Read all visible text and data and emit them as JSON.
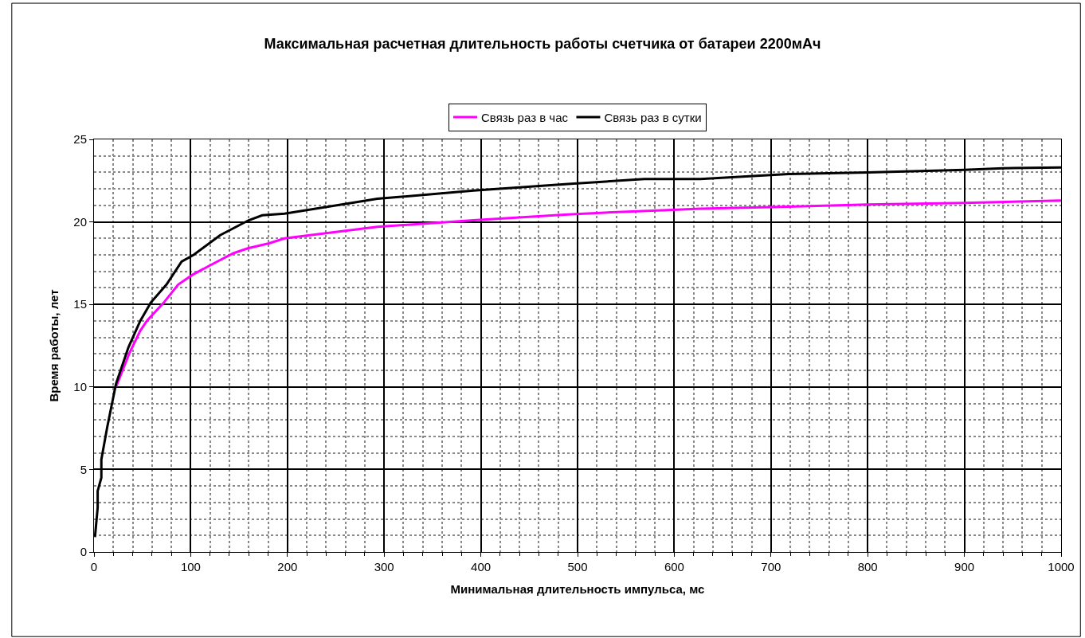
{
  "chart_data": {
    "type": "line",
    "title": "Максимальная расчетная длительность работы счетчика от батареи 2200мАч",
    "xlabel": "Минимальная длительность импульса, мс",
    "ylabel": "Время работы, лет",
    "xlim": [
      0,
      1000
    ],
    "xticks": [
      0,
      100,
      200,
      300,
      400,
      500,
      600,
      700,
      800,
      900,
      1000
    ],
    "ylim": [
      0,
      25
    ],
    "yticks": [
      0,
      5,
      10,
      15,
      20,
      25
    ],
    "grid": true,
    "legend": "top",
    "marker": "none",
    "line_style": "solid",
    "series": [
      {
        "name": "Связь раз в час",
        "color": "#ff00ff",
        "x": [
          22.8,
          37,
          47.8,
          54.6,
          72,
          87,
          102,
          111.5,
          121,
          144,
          159,
          181,
          197,
          293,
          392.5,
          490,
          541,
          588,
          627,
          700,
          800,
          900,
          1000
        ],
        "values": [
          10.0,
          12.1,
          13.4,
          14.0,
          15.1,
          16.2,
          16.8,
          17.1,
          17.4,
          18.1,
          18.4,
          18.7,
          19.0,
          19.7,
          20.1,
          20.45,
          20.6,
          20.7,
          20.8,
          20.9,
          21.05,
          21.15,
          21.3
        ]
      },
      {
        "name": "Связь раз в сутки",
        "color": "#000000",
        "x": [
          1,
          3.8,
          3.8,
          7.6,
          7.6,
          13.8,
          22.8,
          35.6,
          47.8,
          58.6,
          74.9,
          90.6,
          103,
          130.5,
          160,
          174,
          197,
          293,
          392.5,
          490,
          569,
          600,
          627,
          689,
          718,
          800,
          900,
          940,
          1000
        ],
        "values": [
          0.9,
          2.7,
          3.7,
          4.5,
          5.6,
          7.6,
          10.2,
          12.4,
          14.0,
          15.1,
          16.2,
          17.6,
          18.0,
          19.2,
          20.1,
          20.4,
          20.5,
          21.4,
          21.9,
          22.3,
          22.6,
          22.6,
          22.6,
          22.8,
          22.9,
          23.0,
          23.15,
          23.25,
          23.3
        ]
      }
    ]
  }
}
